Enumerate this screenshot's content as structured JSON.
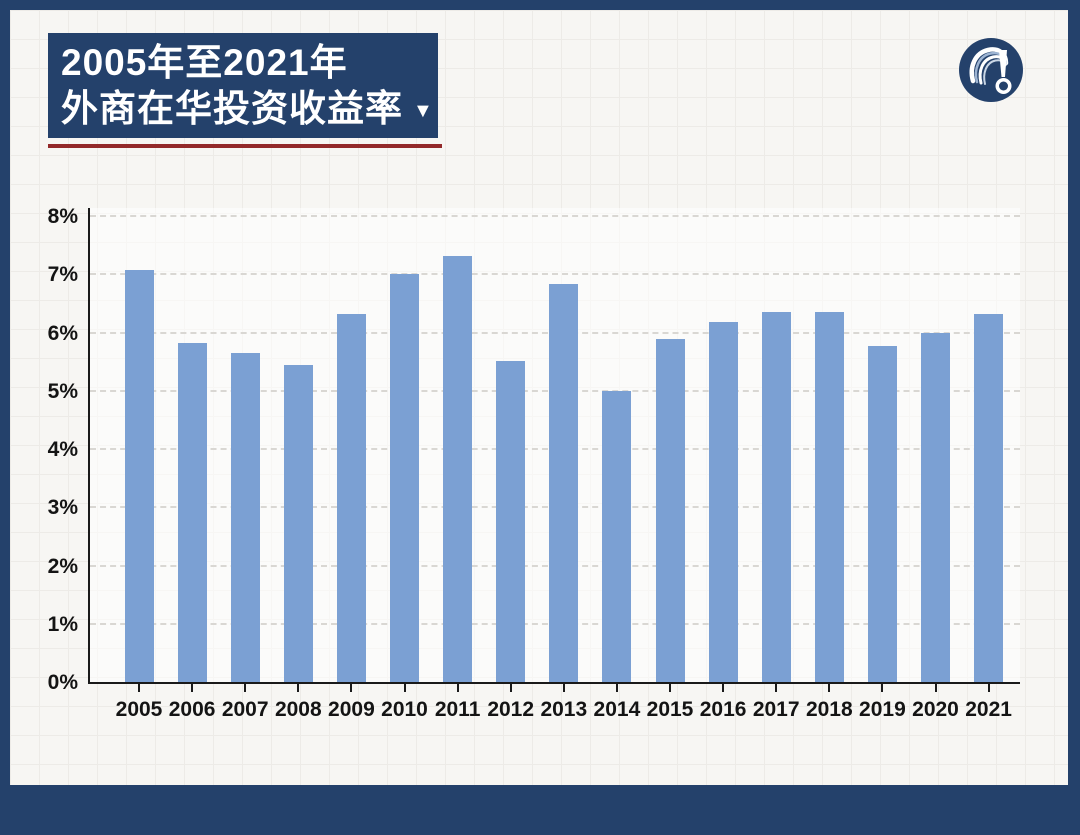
{
  "page": {
    "background_color": "#f7f6f3",
    "border_color": "#24416b"
  },
  "header": {
    "title_line1": "2005年至2021年",
    "title_line2": "外商在华投资收益率",
    "dropdown_arrow": "▼",
    "box_color": "#24416b",
    "underline_color": "#93292a",
    "logo_icon": "question-exclamation-logo"
  },
  "chart_data": {
    "type": "bar",
    "title": "2005年至2021年外商在华投资收益率",
    "categories": [
      "2005",
      "2006",
      "2007",
      "2008",
      "2009",
      "2010",
      "2011",
      "2012",
      "2013",
      "2014",
      "2015",
      "2016",
      "2017",
      "2018",
      "2019",
      "2020",
      "2021"
    ],
    "values": [
      7.08,
      5.82,
      5.65,
      5.45,
      6.31,
      7.01,
      7.31,
      5.51,
      6.83,
      5.0,
      5.89,
      6.18,
      6.36,
      6.35,
      5.77,
      6.0,
      6.31
    ],
    "unit": "%",
    "xlabel": "",
    "ylabel": "",
    "ylim": [
      0,
      8
    ],
    "ytick_step": 1,
    "ytick_labels": [
      "0%",
      "1%",
      "2%",
      "3%",
      "4%",
      "5%",
      "6%",
      "7%",
      "8%"
    ],
    "bar_color": "#7ba0d3",
    "grid": true,
    "gridline_style": "dashed",
    "legend": null
  }
}
